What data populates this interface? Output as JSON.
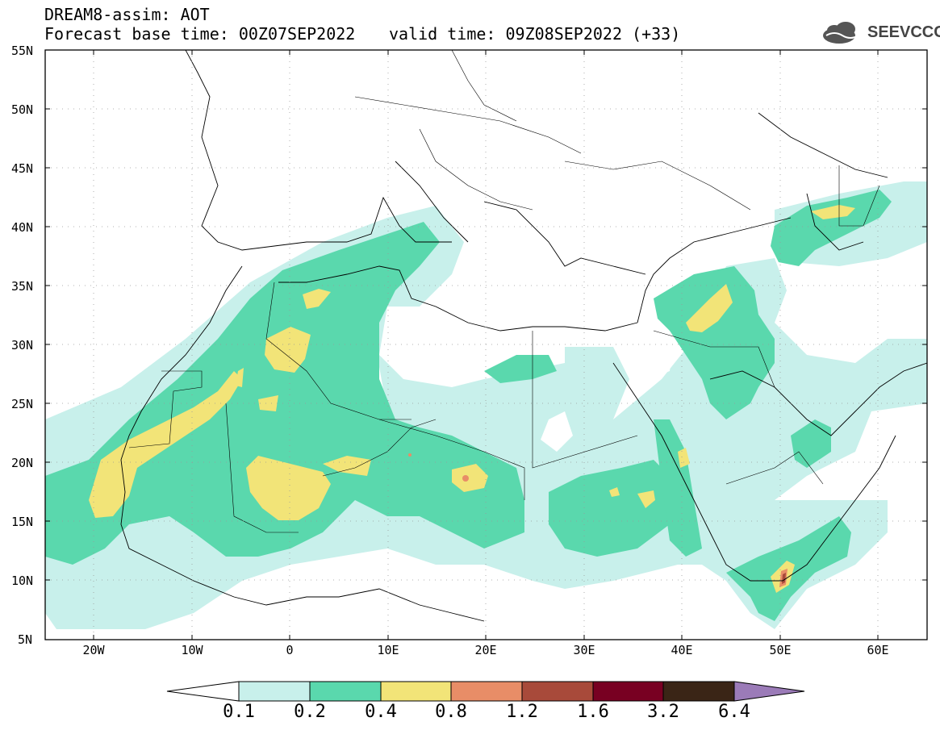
{
  "header": {
    "title": "DREAM8-assim: AOT",
    "base_time": "Forecast base time: 00Z07SEP2022",
    "valid_time": "valid time: 09Z08SEP2022 (+33)"
  },
  "logo": {
    "text": "SEEVCCC",
    "icon": "cloud-icon"
  },
  "map": {
    "lat_labels": [
      "55N",
      "50N",
      "45N",
      "40N",
      "35N",
      "30N",
      "25N",
      "20N",
      "15N",
      "10N",
      "5N"
    ],
    "lon_labels": [
      "20W",
      "10W",
      "0",
      "10E",
      "20E",
      "30E",
      "40E",
      "50E",
      "60E"
    ],
    "lat_range": [
      5,
      55
    ],
    "lon_range": [
      -25,
      65
    ]
  },
  "colorbar": {
    "labels": [
      "0.1",
      "0.2",
      "0.4",
      "0.8",
      "1.2",
      "1.6",
      "3.2",
      "6.4"
    ],
    "colors": [
      "#ffffff",
      "#c8f0eb",
      "#5ad8ad",
      "#f2e478",
      "#e88d67",
      "#a84a3a",
      "#780022",
      "#3a2516",
      "#9b7bb8"
    ]
  }
}
